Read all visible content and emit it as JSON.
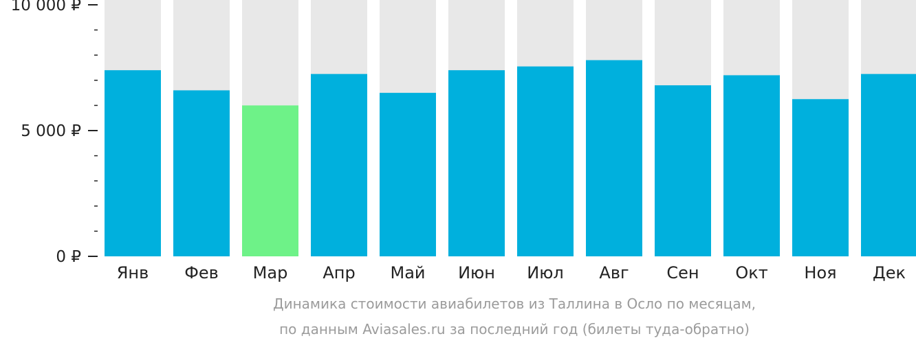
{
  "chart_data": {
    "type": "bar",
    "categories": [
      "Янв",
      "Фев",
      "Мар",
      "Апр",
      "Май",
      "Июн",
      "Июл",
      "Авг",
      "Сен",
      "Окт",
      "Ноя",
      "Дек"
    ],
    "values": [
      7400,
      6600,
      6000,
      7250,
      6500,
      7400,
      7550,
      7800,
      6800,
      7200,
      6250,
      7250
    ],
    "highlight_index": 2,
    "ylim": [
      0,
      10000
    ],
    "yticks": [
      {
        "value": 0,
        "label": "0 ₽"
      },
      {
        "value": 5000,
        "label": "5 000 ₽"
      },
      {
        "value": 10000,
        "label": "10 000 ₽"
      }
    ],
    "minor_tick_step": 1000,
    "grid": false,
    "colors": {
      "bar": "#00b0dd",
      "highlight": "#6ef288",
      "background_column": "#e8e8e8",
      "axis_text": "#222222",
      "caption_text": "#9b9b9b"
    },
    "caption_line1": "Динамика стоимости авиабилетов из Таллина в Осло по месяцам,",
    "caption_line2": "по данным Aviasales.ru за последний год (билеты туда-обратно)"
  }
}
